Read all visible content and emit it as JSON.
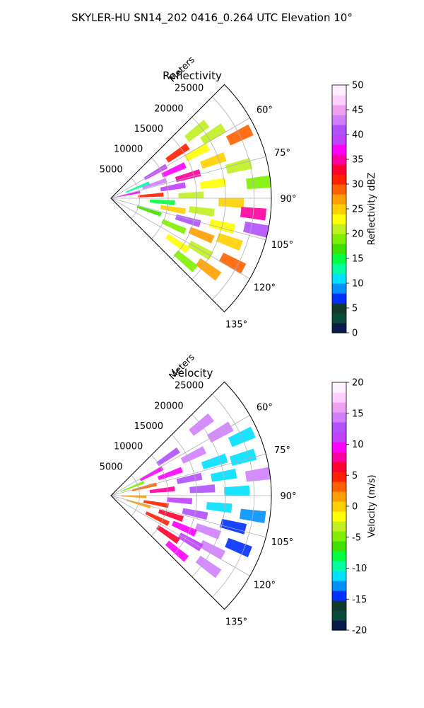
{
  "figure_title": "SKYLER-HU  SN14_202  0416_0.264 UTC Elevation 10°",
  "chart_data": [
    {
      "type": "heatmap",
      "projection": "polar-sector",
      "title": "Reflectivity",
      "range_label": "Meters",
      "range_ticks": [
        5000,
        10000,
        15000,
        20000,
        25000
      ],
      "range_max": 28000,
      "azimuth_range": [
        45,
        135
      ],
      "azimuth_ticks": [
        60,
        75,
        90,
        105,
        120,
        135
      ],
      "azimuth_tick_labels": [
        "60°",
        "75°",
        "90°",
        "105°",
        "120°",
        "135°"
      ],
      "grid": true,
      "colorbar": {
        "label": "Reflectivity dBZ",
        "range": [
          0,
          50
        ],
        "ticks": [
          0,
          5,
          10,
          15,
          20,
          25,
          30,
          35,
          40,
          45,
          50
        ],
        "colors": [
          "#0a1a4a",
          "#0a4a3a",
          "#123a2a",
          "#0030ff",
          "#0090ff",
          "#00e0ff",
          "#00ffa0",
          "#00ff40",
          "#40e000",
          "#80f000",
          "#c0f020",
          "#ffff00",
          "#ffd000",
          "#ffa000",
          "#ff6000",
          "#ff2000",
          "#ff0030",
          "#ff00a0",
          "#ff00ff",
          "#c040ff",
          "#b050ff",
          "#d080ff",
          "#f0a0f0",
          "#ffd0ff",
          "#fff0ff"
        ]
      },
      "cells": [
        {
          "az": 52,
          "r": 19000,
          "dbz": 20
        },
        {
          "az": 56,
          "r": 14000,
          "dbz": 30
        },
        {
          "az": 58,
          "r": 21000,
          "dbz": 20
        },
        {
          "az": 60,
          "r": 9000,
          "dbz": 38
        },
        {
          "az": 62,
          "r": 17000,
          "dbz": 22
        },
        {
          "az": 64,
          "r": 25000,
          "dbz": 28
        },
        {
          "az": 66,
          "r": 12000,
          "dbz": 36
        },
        {
          "az": 68,
          "r": 5000,
          "dbz": 12
        },
        {
          "az": 70,
          "r": 19000,
          "dbz": 24
        },
        {
          "az": 72,
          "r": 8000,
          "dbz": 42
        },
        {
          "az": 74,
          "r": 14000,
          "dbz": 34
        },
        {
          "az": 76,
          "r": 23000,
          "dbz": 20
        },
        {
          "az": 78,
          "r": 3000,
          "dbz": 36
        },
        {
          "az": 80,
          "r": 11000,
          "dbz": 38
        },
        {
          "az": 82,
          "r": 18000,
          "dbz": 22
        },
        {
          "az": 84,
          "r": 26000,
          "dbz": 18
        },
        {
          "az": 86,
          "r": 7000,
          "dbz": 30
        },
        {
          "az": 88,
          "r": 14000,
          "dbz": 20
        },
        {
          "az": 92,
          "r": 21000,
          "dbz": 24
        },
        {
          "az": 94,
          "r": 9000,
          "dbz": 14
        },
        {
          "az": 96,
          "r": 25000,
          "dbz": 34
        },
        {
          "az": 98,
          "r": 16000,
          "dbz": 20
        },
        {
          "az": 100,
          "r": 11000,
          "dbz": 24
        },
        {
          "az": 102,
          "r": 26000,
          "dbz": 40
        },
        {
          "az": 104,
          "r": 20000,
          "dbz": 22
        },
        {
          "az": 106,
          "r": 14000,
          "dbz": 40
        },
        {
          "az": 108,
          "r": 7000,
          "dbz": 16
        },
        {
          "az": 110,
          "r": 22000,
          "dbz": 24
        },
        {
          "az": 112,
          "r": 17000,
          "dbz": 26
        },
        {
          "az": 114,
          "r": 12000,
          "dbz": 18
        },
        {
          "az": 118,
          "r": 24000,
          "dbz": 28
        },
        {
          "az": 120,
          "r": 18000,
          "dbz": 20
        },
        {
          "az": 124,
          "r": 14000,
          "dbz": 22
        },
        {
          "az": 126,
          "r": 21000,
          "dbz": 26
        },
        {
          "az": 130,
          "r": 17000,
          "dbz": 18
        }
      ]
    },
    {
      "type": "heatmap",
      "projection": "polar-sector",
      "title": "Velocity",
      "range_label": "Meters",
      "range_ticks": [
        5000,
        10000,
        15000,
        20000,
        25000
      ],
      "range_max": 28000,
      "azimuth_range": [
        45,
        135
      ],
      "azimuth_ticks": [
        60,
        75,
        90,
        105,
        120,
        135
      ],
      "azimuth_tick_labels": [
        "60°",
        "75°",
        "90°",
        "105°",
        "120°",
        "135°"
      ],
      "grid": true,
      "colorbar": {
        "label": "Velocity (m/s)",
        "range": [
          -20,
          20
        ],
        "ticks": [
          -20,
          -15,
          -10,
          -5,
          0,
          5,
          10,
          15,
          20
        ],
        "colors": [
          "#0a1a4a",
          "#0a4a3a",
          "#123a2a",
          "#0030ff",
          "#0090ff",
          "#00e0ff",
          "#00ffa0",
          "#00ff40",
          "#40e000",
          "#80f000",
          "#c0f020",
          "#ffff00",
          "#ffd000",
          "#ffa000",
          "#ff6000",
          "#ff2000",
          "#ff0030",
          "#ff00a0",
          "#ff00ff",
          "#c040ff",
          "#b050ff",
          "#d080ff",
          "#f0a0f0",
          "#ffd0ff",
          "#fff0ff"
        ]
      },
      "cells": [
        {
          "az": 52,
          "r": 20000,
          "v": 14
        },
        {
          "az": 56,
          "r": 12000,
          "v": 13
        },
        {
          "az": 60,
          "r": 22000,
          "v": 14
        },
        {
          "az": 62,
          "r": 8000,
          "v": 10
        },
        {
          "az": 64,
          "r": 16000,
          "v": 14
        },
        {
          "az": 66,
          "r": 25000,
          "v": -11
        },
        {
          "az": 68,
          "r": 4000,
          "v": -5
        },
        {
          "az": 70,
          "r": 11000,
          "v": 10
        },
        {
          "az": 72,
          "r": 19000,
          "v": -12
        },
        {
          "az": 74,
          "r": 24000,
          "v": -11
        },
        {
          "az": 76,
          "r": 6000,
          "v": 3
        },
        {
          "az": 78,
          "r": 14000,
          "v": 13
        },
        {
          "az": 80,
          "r": 20000,
          "v": -12
        },
        {
          "az": 82,
          "r": 26000,
          "v": 15
        },
        {
          "az": 84,
          "r": 9000,
          "v": 8
        },
        {
          "az": 86,
          "r": 16000,
          "v": 13
        },
        {
          "az": 88,
          "r": 22000,
          "v": -12
        },
        {
          "az": 92,
          "r": 4000,
          "v": 1
        },
        {
          "az": 94,
          "r": 12000,
          "v": 11
        },
        {
          "az": 96,
          "r": 19000,
          "v": -12
        },
        {
          "az": 98,
          "r": 25000,
          "v": -13
        },
        {
          "az": 100,
          "r": 8000,
          "v": 4
        },
        {
          "az": 102,
          "r": 15000,
          "v": 12
        },
        {
          "az": 104,
          "r": 22000,
          "v": -14
        },
        {
          "az": 106,
          "r": 5000,
          "v": 2
        },
        {
          "az": 108,
          "r": 11000,
          "v": 7
        },
        {
          "az": 110,
          "r": 18000,
          "v": 14
        },
        {
          "az": 112,
          "r": 24000,
          "v": -14
        },
        {
          "az": 114,
          "r": 14000,
          "v": 9
        },
        {
          "az": 116,
          "r": 9000,
          "v": 4
        },
        {
          "az": 118,
          "r": 20000,
          "v": 14
        },
        {
          "az": 120,
          "r": 16000,
          "v": 11
        },
        {
          "az": 124,
          "r": 12000,
          "v": 7
        },
        {
          "az": 126,
          "r": 21000,
          "v": 15
        },
        {
          "az": 130,
          "r": 15000,
          "v": 9
        }
      ]
    }
  ]
}
